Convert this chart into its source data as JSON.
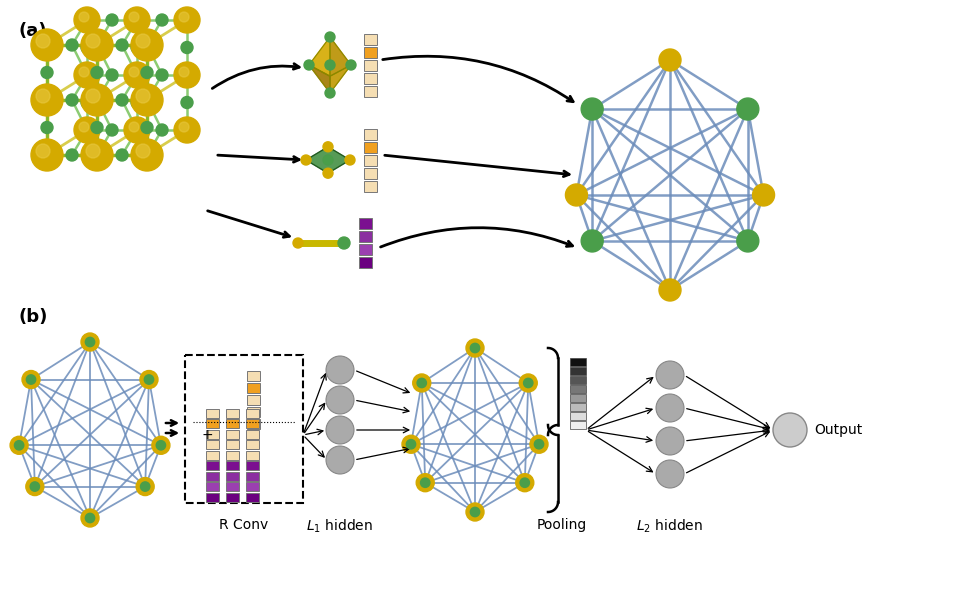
{
  "bg_color": "#ffffff",
  "gold": "#d4aa00",
  "gold_light": "#e8c840",
  "green": "#4a9e4a",
  "green_light": "#7acc7a",
  "edge_color": "#6b8cba",
  "edge_color_a": "#7090c0",
  "gray_node": "#aaaaaa",
  "gray_node_edge": "#888888",
  "atom_bar_colors": [
    "#f5deb3",
    "#f0a020",
    "#f5deb3",
    "#f5deb3",
    "#f5deb3"
  ],
  "bond_bar_colors": [
    "#7b1090",
    "#8b2fa0",
    "#9b3fb0",
    "#6b0080"
  ],
  "gray_bar_colors": [
    "#111111",
    "#333333",
    "#555555",
    "#777777",
    "#999999",
    "#bbbbbb",
    "#dddddd",
    "#eeeeee"
  ],
  "label_a": "(a)",
  "label_b": "(b)",
  "label_rconv": "R Conv",
  "label_l1": "$L_1$ hidden",
  "label_pooling": "Pooling",
  "label_l2": "$L_2$ hidden",
  "label_output": "Output"
}
